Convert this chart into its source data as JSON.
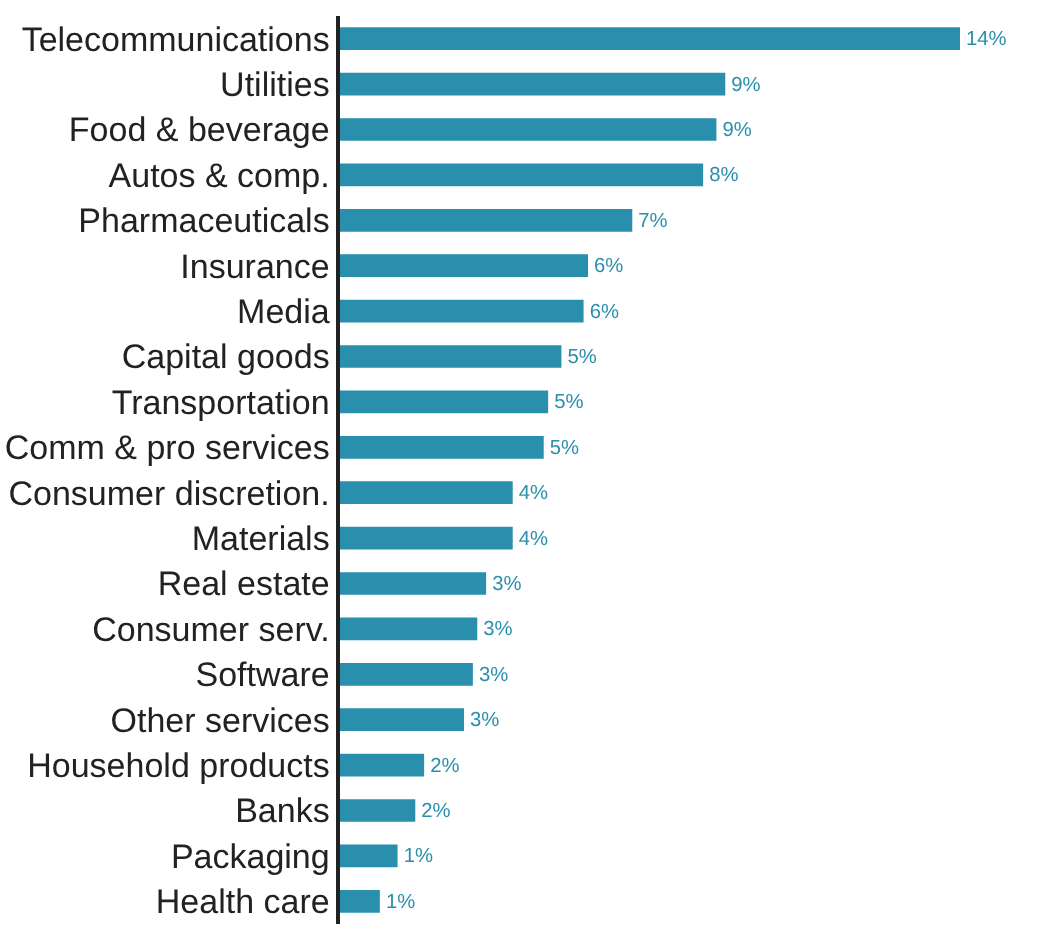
{
  "chart_data": {
    "type": "bar",
    "orientation": "horizontal",
    "categories": [
      "Telecommunications",
      "Utilities",
      "Food & beverage",
      "Autos & comp.",
      "Pharmaceuticals",
      "Insurance",
      "Media",
      "Capital goods",
      "Transportation",
      "Comm & pro services",
      "Consumer discretion.",
      "Materials",
      "Real estate",
      "Consumer serv.",
      "Software",
      "Other services",
      "Household products",
      "Banks",
      "Packaging",
      "Health care"
    ],
    "values": [
      14,
      8.7,
      8.5,
      8.2,
      6.6,
      5.6,
      5.5,
      5.0,
      4.7,
      4.6,
      3.9,
      3.9,
      3.3,
      3.1,
      3.0,
      2.8,
      1.9,
      1.7,
      1.3,
      0.9
    ],
    "value_labels": [
      "14%",
      "9%",
      "9%",
      "8%",
      "7%",
      "6%",
      "6%",
      "5%",
      "5%",
      "5%",
      "4%",
      "4%",
      "3%",
      "3%",
      "3%",
      "3%",
      "2%",
      "2%",
      "1%",
      "1%"
    ],
    "color": "#2a8fad",
    "legend": false
  }
}
